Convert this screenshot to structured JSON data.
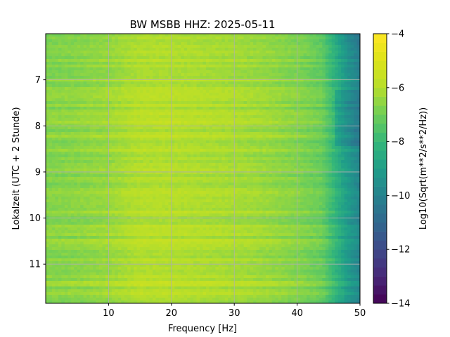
{
  "chart_data": {
    "type": "heatmap",
    "title": "BW MSBB  HHZ: 2025-05-11",
    "xlabel": "Frequency [Hz]",
    "ylabel": "Lokalzeit (UTC + 2 Stunde)",
    "colorbar_label": "Log10(Sqrt(m**2/s**2/Hz))",
    "colormap": "viridis",
    "xlim": [
      0,
      50
    ],
    "ylim": [
      6.0,
      11.85
    ],
    "y_inverted": true,
    "x_ticks": [
      "10",
      "20",
      "30",
      "40",
      "50"
    ],
    "y_ticks": [
      "7",
      "8",
      "9",
      "10",
      "11"
    ],
    "colorbar_ticks": [
      "-4",
      "-6",
      "-8",
      "-10",
      "-12",
      "-14"
    ],
    "clim": [
      -14,
      -4
    ],
    "grid": true,
    "description_profile": [
      {
        "freq_hz": 0,
        "log_amp": -6.6
      },
      {
        "freq_hz": 5,
        "log_amp": -6.5
      },
      {
        "freq_hz": 10,
        "log_amp": -6.3
      },
      {
        "freq_hz": 15,
        "log_amp": -5.9
      },
      {
        "freq_hz": 20,
        "log_amp": -5.9
      },
      {
        "freq_hz": 25,
        "log_amp": -6.0
      },
      {
        "freq_hz": 30,
        "log_amp": -6.1
      },
      {
        "freq_hz": 35,
        "log_amp": -6.3
      },
      {
        "freq_hz": 40,
        "log_amp": -6.6
      },
      {
        "freq_hz": 44,
        "log_amp": -7.0
      },
      {
        "freq_hz": 46,
        "log_amp": -8.0
      },
      {
        "freq_hz": 48,
        "log_amp": -9.0
      },
      {
        "freq_hz": 50,
        "log_amp": -9.8
      }
    ]
  }
}
